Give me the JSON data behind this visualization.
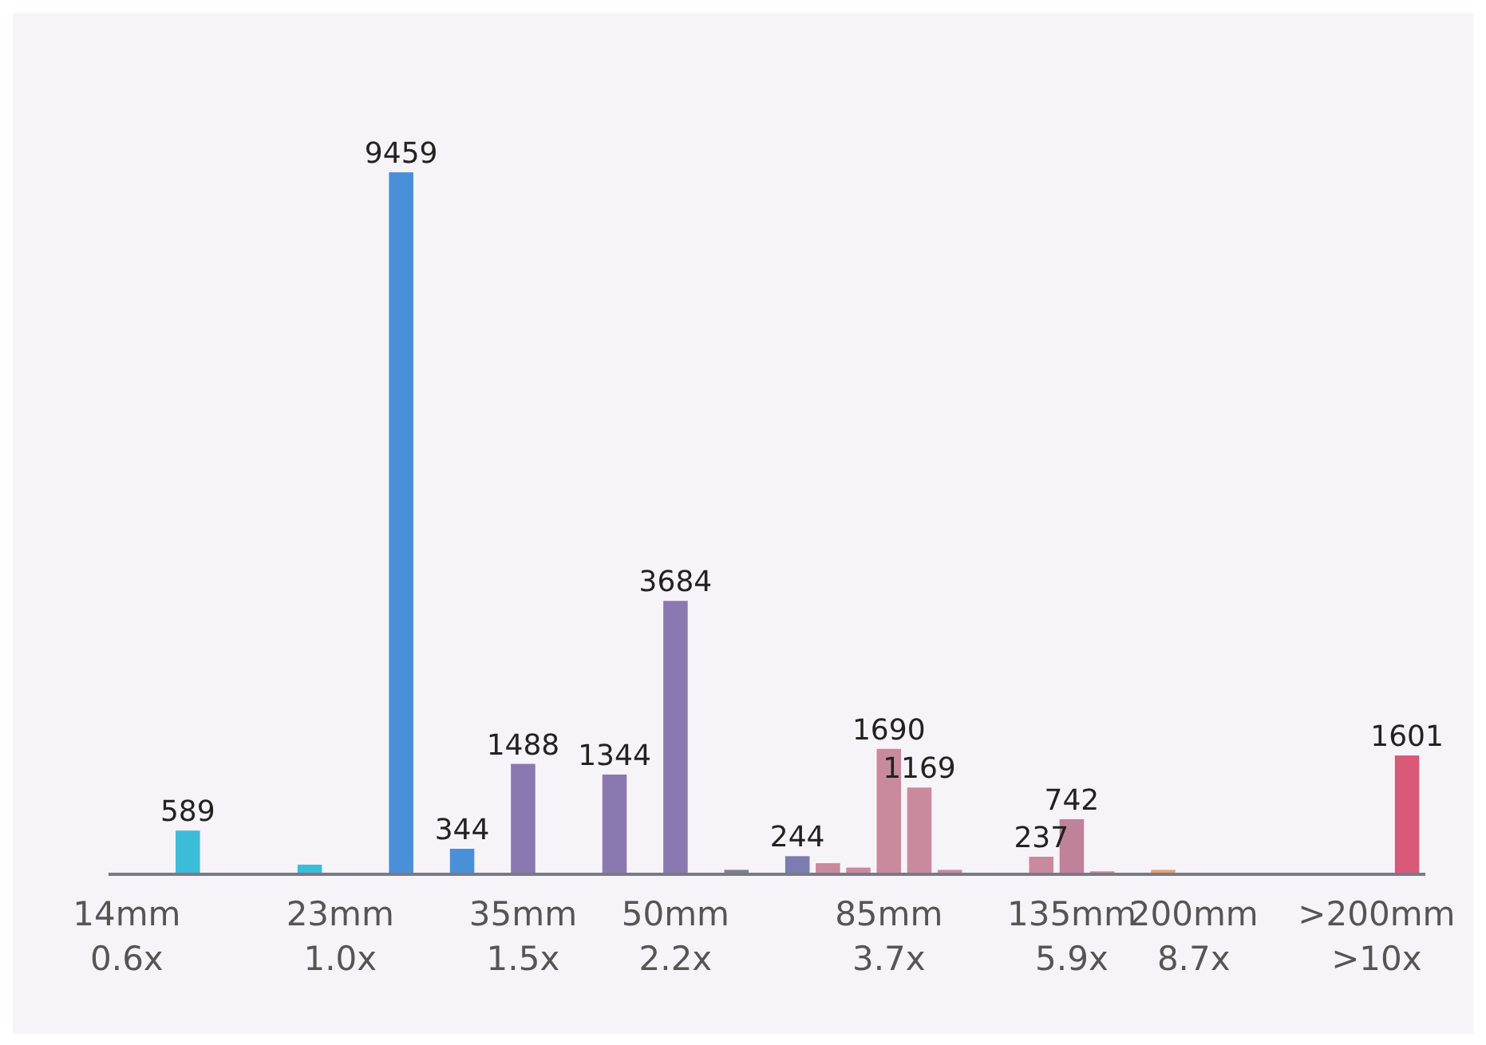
{
  "chart_data": {
    "type": "bar",
    "categories": [
      "14mm\n0.6x",
      null,
      null,
      null,
      null,
      null,
      null,
      "23mm\n1.0x",
      null,
      null,
      null,
      null,
      null,
      "35mm\n1.5x",
      null,
      null,
      null,
      null,
      "50mm\n2.2x",
      null,
      null,
      null,
      null,
      null,
      null,
      "85mm\n3.7x",
      null,
      null,
      null,
      null,
      null,
      "135mm\n5.9x",
      null,
      null,
      null,
      "200mm\n8.7x",
      null,
      null,
      null,
      null,
      null,
      ">200mm\n>10x",
      null
    ],
    "values": [
      null,
      null,
      589,
      null,
      null,
      null,
      130,
      null,
      null,
      9459,
      null,
      344,
      null,
      1488,
      null,
      null,
      1344,
      null,
      3684,
      null,
      60,
      null,
      244,
      150,
      90,
      1690,
      1169,
      60,
      null,
      null,
      237,
      742,
      40,
      null,
      60,
      null,
      null,
      null,
      null,
      null,
      null,
      null,
      1601
    ],
    "value_labels": [
      null,
      null,
      "589",
      null,
      null,
      null,
      null,
      null,
      null,
      "9459",
      null,
      "344",
      null,
      "1488",
      null,
      null,
      "1344",
      null,
      "3684",
      null,
      null,
      null,
      "244",
      null,
      null,
      "1690",
      "1169",
      null,
      null,
      null,
      "237",
      "742",
      null,
      null,
      null,
      null,
      null,
      null,
      null,
      null,
      null,
      null,
      "1601"
    ],
    "colors": [
      null,
      null,
      "#3bbcd8",
      null,
      null,
      null,
      "#3bbcd8",
      null,
      null,
      "#4a90d9",
      null,
      "#4a90d9",
      null,
      "#8a79b0",
      null,
      null,
      "#8a79b0",
      null,
      "#8a79b0",
      null,
      "#7f7f8f",
      null,
      "#7d7cb0",
      "#c98a9e",
      "#c98a9e",
      "#c98a9e",
      "#c98a9e",
      "#c98a9e",
      null,
      null,
      "#c98a9e",
      "#c0819a",
      "#c98a9e",
      null,
      "#e8a070",
      null,
      null,
      null,
      null,
      null,
      null,
      null,
      "#d85a78"
    ]
  }
}
